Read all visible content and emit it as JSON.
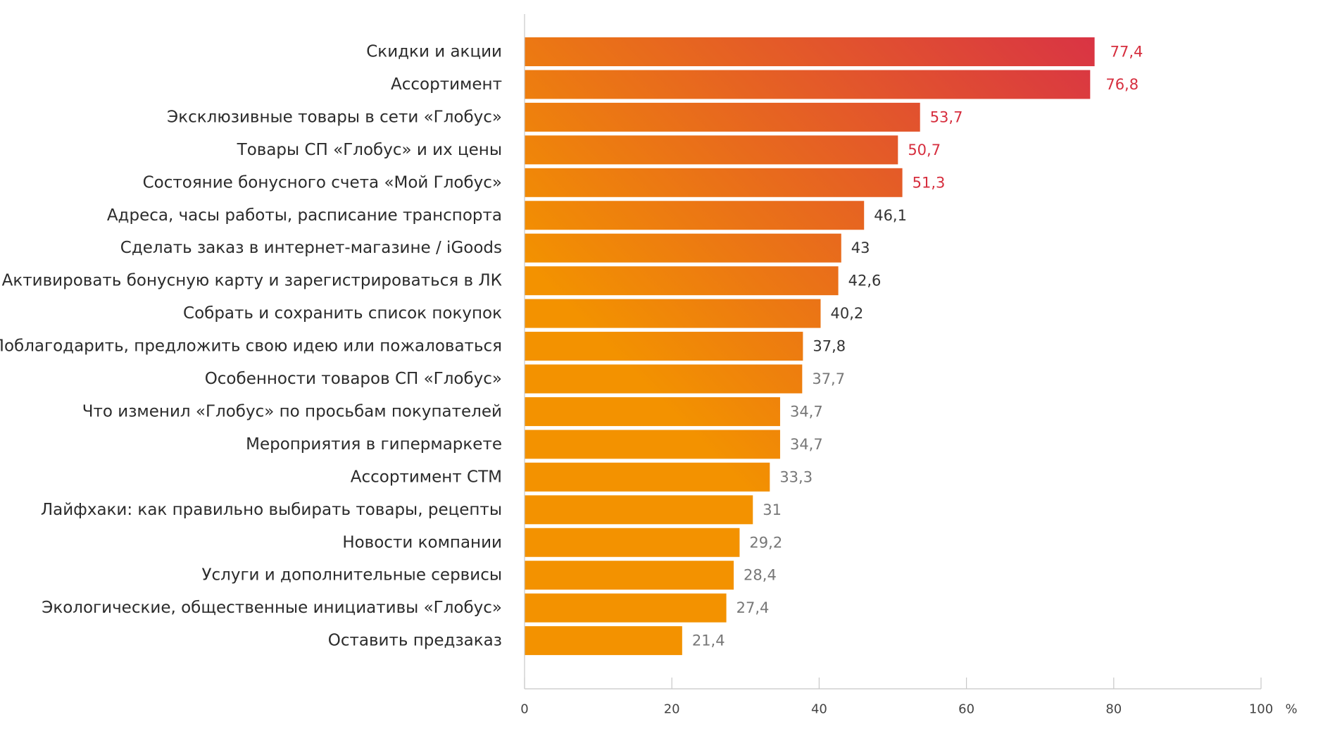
{
  "chart_data": {
    "type": "bar",
    "orientation": "horizontal",
    "categories": [
      "Скидки и акции",
      "Ассортимент",
      "Эксклюзивные товары в сети «Глобус»",
      "Товары СП «Глобус» и их цены",
      "Состояние бонусного счета «Мой Глобус»",
      "Адреса, часы работы, расписание транспорта",
      "Сделать заказ в интернет-магазине  /  iGoods",
      "Активировать бонусную карту и зарегистрироваться в ЛК",
      "Собрать и сохранить список покупок",
      "Поблагодарить, предложить свою идею или пожаловаться",
      "Особенности товаров СП «Глобус»",
      "Что изменил «Глобус» по просьбам покупателей",
      "Мероприятия в гипермаркете",
      "Ассортимент СТМ",
      "Лайфхаки: как правильно выбирать товары, рецепты",
      "Новости компании",
      "Услуги и дополнительные сервисы",
      "Экологические, общественные инициативы «Глобус»",
      "Оставить предзаказ"
    ],
    "values": [
      77.4,
      76.8,
      53.7,
      50.7,
      51.3,
      46.1,
      43,
      42.6,
      40.2,
      37.8,
      37.7,
      34.7,
      34.7,
      33.3,
      31,
      29.2,
      28.4,
      27.4,
      21.4
    ],
    "value_labels": [
      "77,4",
      "76,8",
      "53,7",
      "50,7",
      "51,3",
      "46,1",
      "43",
      "42,6",
      "40,2",
      "37,8",
      "37,7",
      "34,7",
      "34,7",
      "33,3",
      "31",
      "29,2",
      "28,4",
      "27,4",
      "21,4"
    ],
    "highlighted_top": 5,
    "xlim": [
      0,
      100
    ],
    "x_ticks": [
      0,
      20,
      40,
      60,
      80,
      100
    ],
    "x_unit": "%",
    "grid": false,
    "legend": "none",
    "colors": {
      "gradient_start": "#F39200",
      "gradient_end": "#D93444",
      "highlight_text": "#D62E3E",
      "value_text_dark": "#333333",
      "value_text_light": "#777777",
      "axis": "#c8c8c8"
    }
  }
}
